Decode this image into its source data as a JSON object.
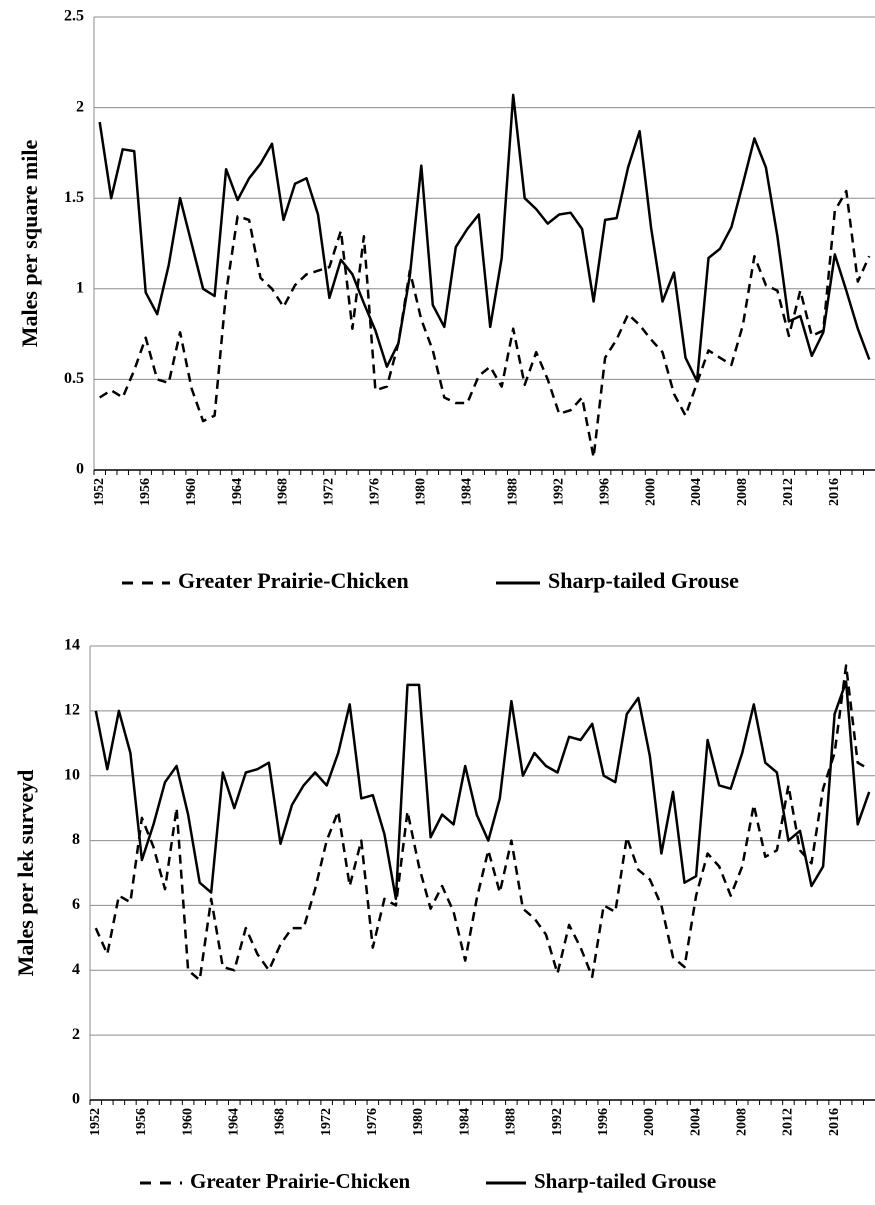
{
  "chart_data": [
    {
      "type": "line",
      "y_label": "Males per square mile",
      "categories": [
        "1952",
        null,
        null,
        null,
        "1956",
        null,
        null,
        null,
        "1960",
        null,
        null,
        null,
        "1964",
        null,
        null,
        null,
        "1968",
        null,
        null,
        null,
        "1972",
        null,
        null,
        null,
        "1976",
        null,
        null,
        null,
        "1980",
        null,
        null,
        null,
        "1984",
        null,
        null,
        null,
        "1988",
        null,
        null,
        null,
        "1992",
        null,
        null,
        null,
        "1996",
        null,
        null,
        null,
        "2000",
        null,
        null,
        null,
        "2004",
        null,
        null,
        null,
        "2008",
        null,
        null,
        null,
        "2012",
        null,
        null,
        null,
        "2016",
        null,
        null,
        null
      ],
      "ylim": [
        0,
        2.5
      ],
      "yticks": [
        0,
        0.5,
        1,
        1.5,
        2,
        2.5
      ],
      "grid": true,
      "legend": "bottom",
      "series": [
        {
          "name": "Greater Prairie-Chicken",
          "color": "#000000",
          "line_style": "dashed",
          "values": [
            0.4,
            0.44,
            0.4,
            0.55,
            0.73,
            0.5,
            0.48,
            0.76,
            0.45,
            0.27,
            0.3,
            0.98,
            1.4,
            1.38,
            1.06,
            1.0,
            0.9,
            1.02,
            1.08,
            1.1,
            1.12,
            1.32,
            0.78,
            1.29,
            0.44,
            0.46,
            0.7,
            1.1,
            0.83,
            0.66,
            0.4,
            0.37,
            0.37,
            0.52,
            0.57,
            0.46,
            0.78,
            0.47,
            0.65,
            0.5,
            0.31,
            0.33,
            0.4,
            0.07,
            0.62,
            0.72,
            0.86,
            0.8,
            0.72,
            0.65,
            0.42,
            0.3,
            0.48,
            0.66,
            0.62,
            0.58,
            0.8,
            1.18,
            1.02,
            0.99,
            0.74,
            0.99,
            0.74,
            0.77,
            1.43,
            1.54,
            1.04,
            1.18
          ]
        },
        {
          "name": "Sharp-tailed Grouse",
          "color": "#000000",
          "line_style": "solid",
          "values": [
            1.92,
            1.5,
            1.77,
            1.76,
            0.98,
            0.86,
            1.13,
            1.5,
            1.25,
            1.0,
            0.96,
            1.66,
            1.49,
            1.61,
            1.69,
            1.8,
            1.38,
            1.58,
            1.61,
            1.41,
            0.95,
            1.16,
            1.08,
            0.92,
            0.77,
            0.57,
            0.7,
            1.07,
            1.68,
            0.91,
            0.79,
            1.23,
            1.33,
            1.41,
            0.79,
            1.17,
            2.07,
            1.5,
            1.44,
            1.36,
            1.41,
            1.42,
            1.33,
            0.93,
            1.38,
            1.39,
            1.67,
            1.87,
            1.34,
            0.93,
            1.09,
            0.62,
            0.49,
            1.17,
            1.22,
            1.34,
            1.58,
            1.83,
            1.67,
            1.29,
            0.82,
            0.85,
            0.63,
            0.76,
            1.19,
            0.99,
            0.78,
            0.61
          ]
        }
      ]
    },
    {
      "type": "line",
      "y_label": "Males per lek surveyd",
      "categories": [
        "1952",
        null,
        null,
        null,
        "1956",
        null,
        null,
        null,
        "1960",
        null,
        null,
        null,
        "1964",
        null,
        null,
        null,
        "1968",
        null,
        null,
        null,
        "1972",
        null,
        null,
        null,
        "1976",
        null,
        null,
        null,
        "1980",
        null,
        null,
        null,
        "1984",
        null,
        null,
        null,
        "1988",
        null,
        null,
        null,
        "1992",
        null,
        null,
        null,
        "1996",
        null,
        null,
        null,
        "2000",
        null,
        null,
        null,
        "2004",
        null,
        null,
        null,
        "2008",
        null,
        null,
        null,
        "2012",
        null,
        null,
        null,
        "2016",
        null,
        null,
        null
      ],
      "ylim": [
        0,
        14
      ],
      "yticks": [
        0,
        2,
        4,
        6,
        8,
        10,
        12,
        14
      ],
      "grid": true,
      "legend": "bottom",
      "series": [
        {
          "name": "Greater Prairie-Chicken",
          "color": "#000000",
          "line_style": "dashed",
          "values": [
            5.3,
            4.5,
            6.3,
            6.1,
            8.7,
            7.8,
            6.5,
            9.0,
            4.0,
            3.7,
            6.2,
            4.1,
            4.0,
            5.3,
            4.5,
            4.0,
            4.8,
            5.3,
            5.3,
            6.5,
            8.0,
            8.9,
            6.6,
            8.0,
            4.7,
            6.2,
            6.0,
            8.9,
            7.2,
            5.9,
            6.6,
            5.8,
            4.3,
            6.2,
            7.7,
            6.4,
            8.0,
            5.9,
            5.6,
            5.1,
            3.9,
            5.4,
            4.7,
            3.8,
            6.0,
            5.8,
            8.1,
            7.1,
            6.8,
            6.0,
            4.4,
            4.1,
            6.3,
            7.6,
            7.2,
            6.3,
            7.2,
            9.1,
            7.5,
            7.7,
            9.7,
            7.7,
            7.3,
            9.6,
            10.7,
            13.4,
            10.4,
            10.2
          ]
        },
        {
          "name": "Sharp-tailed Grouse",
          "color": "#000000",
          "line_style": "solid",
          "values": [
            12.0,
            10.2,
            12.0,
            10.7,
            7.4,
            8.5,
            9.8,
            10.3,
            8.8,
            6.7,
            6.4,
            10.1,
            9.0,
            10.1,
            10.2,
            10.4,
            7.9,
            9.1,
            9.7,
            10.1,
            9.7,
            10.7,
            12.2,
            9.3,
            9.4,
            8.2,
            6.2,
            12.8,
            12.8,
            8.1,
            8.8,
            8.5,
            10.3,
            8.8,
            8.0,
            9.3,
            12.3,
            10.0,
            10.7,
            10.3,
            10.1,
            11.2,
            11.1,
            11.6,
            10.0,
            9.8,
            11.9,
            12.4,
            10.6,
            7.6,
            9.5,
            6.7,
            6.9,
            11.1,
            9.7,
            9.6,
            10.7,
            12.2,
            10.4,
            10.1,
            8.0,
            8.3,
            6.6,
            7.2,
            11.9,
            12.9,
            8.5,
            9.5
          ]
        }
      ]
    }
  ]
}
